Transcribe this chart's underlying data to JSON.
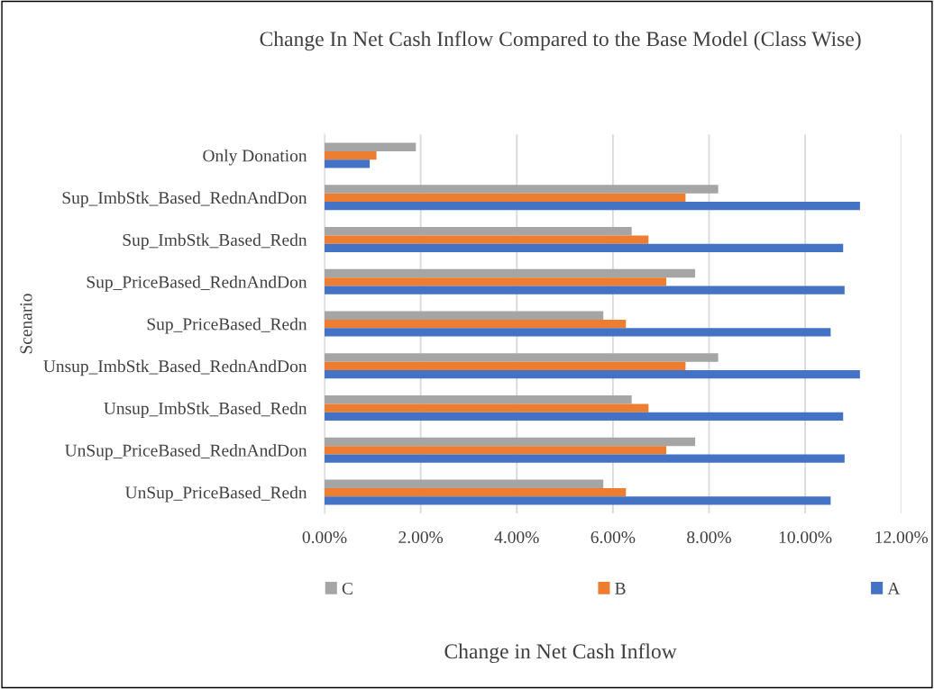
{
  "chart_data": {
    "type": "bar",
    "orientation": "horizontal",
    "title": "Change In Net Cash Inflow Compared to the Base Model (Class Wise)",
    "annotations": [
      "Change in Net Cash Inflow"
    ],
    "ylabel": "Scenario",
    "categories": [
      "Only Donation",
      "Sup_ImbStk_Based_RednAndDon",
      "Sup_ImbStk_Based_Redn",
      "Sup_PriceBased_RednAndDon",
      "Sup_PriceBased_Redn",
      "Unsup_ImbStk_Based_RednAndDon",
      "Unsup_ImbStk_Based_Redn",
      "UnSup_PriceBased_RednAndDon",
      "UnSup_PriceBased_Redn"
    ],
    "series": [
      {
        "name": "C",
        "color": "#a5a5a5",
        "values": [
          1.9,
          8.19,
          6.39,
          7.71,
          5.8,
          8.19,
          6.39,
          7.71,
          5.8
        ]
      },
      {
        "name": "B",
        "color": "#ed7d31",
        "values": [
          1.08,
          7.51,
          6.74,
          7.11,
          6.27,
          7.51,
          6.74,
          7.11,
          6.27
        ]
      },
      {
        "name": "A",
        "color": "#4472c4",
        "values": [
          0.94,
          11.14,
          10.79,
          10.82,
          10.53,
          11.14,
          10.79,
          10.82,
          10.53
        ]
      }
    ],
    "xlim": [
      0,
      12
    ],
    "xticks": [
      {
        "value": 0,
        "label": "0.00%"
      },
      {
        "value": 2,
        "label": "2.00%"
      },
      {
        "value": 4,
        "label": "4.00%"
      },
      {
        "value": 6,
        "label": "6.00%"
      },
      {
        "value": 8,
        "label": "8.00%"
      },
      {
        "value": 10,
        "label": "10.00%"
      },
      {
        "value": 12,
        "label": "12.00%"
      }
    ],
    "grid": "x",
    "legend": "bottom"
  }
}
